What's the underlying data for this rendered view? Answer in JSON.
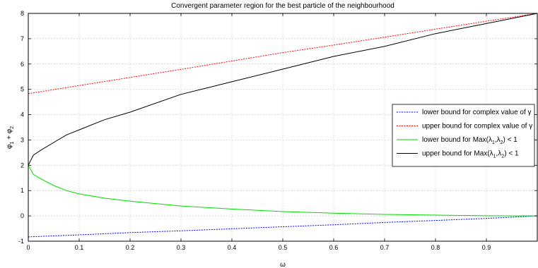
{
  "chart_data": {
    "type": "line",
    "title": "Convergent parameter region for the best particle of the neighbourhood",
    "xlabel": "ω",
    "ylabel_parts": [
      "φ",
      "1",
      " + φ",
      "2"
    ],
    "xlim": [
      0,
      1
    ],
    "ylim": [
      -1,
      8
    ],
    "xticks": [
      0,
      0.1,
      0.2,
      0.3,
      0.4,
      0.5,
      0.6,
      0.7,
      0.8,
      0.9
    ],
    "yticks": [
      -1,
      0,
      1,
      2,
      3,
      4,
      5,
      6,
      7,
      8
    ],
    "xtick_labels": [
      "0",
      "0.1",
      "0.2",
      "0.3",
      "0.4",
      "0.5",
      "0.6",
      "0.7",
      "0.8",
      "0.9"
    ],
    "ytick_labels": [
      "-1",
      "0",
      "1",
      "2",
      "3",
      "4",
      "5",
      "6",
      "7",
      "8"
    ],
    "grid": true,
    "legend_position": "right-middle",
    "series": [
      {
        "key": "lower_complex",
        "legend": [
          "lower bound for complex value of ",
          {
            "sym": "γ"
          }
        ],
        "color": "#0000ff",
        "style": "dashed",
        "x": [
          0,
          0.1,
          0.2,
          0.3,
          0.4,
          0.5,
          0.6,
          0.7,
          0.8,
          0.9,
          1.0
        ],
        "y": [
          -0.83,
          -0.75,
          -0.66,
          -0.59,
          -0.51,
          -0.43,
          -0.35,
          -0.26,
          -0.18,
          -0.1,
          0
        ]
      },
      {
        "key": "upper_complex",
        "legend": [
          "upper bound for complex value of ",
          {
            "sym": "γ"
          }
        ],
        "color": "#ff0000",
        "style": "dashed",
        "x": [
          0,
          0.1,
          0.2,
          0.3,
          0.4,
          0.5,
          0.6,
          0.7,
          0.8,
          0.9,
          1.0
        ],
        "y": [
          4.83,
          5.15,
          5.47,
          5.79,
          6.12,
          6.45,
          6.75,
          7.06,
          7.38,
          7.69,
          8.0
        ]
      },
      {
        "key": "lower_max",
        "legend": [
          "lower bound for Max(",
          {
            "sym": "λ"
          },
          {
            "sub": "1"
          },
          ",",
          {
            "sym": "λ"
          },
          {
            "sub": "2"
          },
          ") < 1"
        ],
        "color": "#00dd00",
        "style": "solid",
        "x": [
          0,
          0.01,
          0.025,
          0.05,
          0.075,
          0.1,
          0.15,
          0.2,
          0.3,
          0.4,
          0.5,
          0.6,
          0.7,
          0.8,
          0.9,
          1.0
        ],
        "y": [
          2.0,
          1.64,
          1.46,
          1.2,
          1.0,
          0.87,
          0.7,
          0.58,
          0.39,
          0.27,
          0.17,
          0.11,
          0.06,
          0.03,
          0.005,
          0
        ]
      },
      {
        "key": "upper_max",
        "legend": [
          "upper bound for Max(",
          {
            "sym": "λ"
          },
          {
            "sub": "1"
          },
          ",",
          {
            "sym": "λ"
          },
          {
            "sub": "2"
          },
          ") < 1"
        ],
        "color": "#000000",
        "style": "solid",
        "x": [
          0,
          0.01,
          0.025,
          0.05,
          0.075,
          0.1,
          0.15,
          0.2,
          0.3,
          0.4,
          0.5,
          0.6,
          0.7,
          0.8,
          0.9,
          1.0
        ],
        "y": [
          2.0,
          2.4,
          2.6,
          2.9,
          3.2,
          3.4,
          3.8,
          4.1,
          4.8,
          5.3,
          5.8,
          6.3,
          6.7,
          7.2,
          7.6,
          8.0
        ]
      }
    ]
  }
}
